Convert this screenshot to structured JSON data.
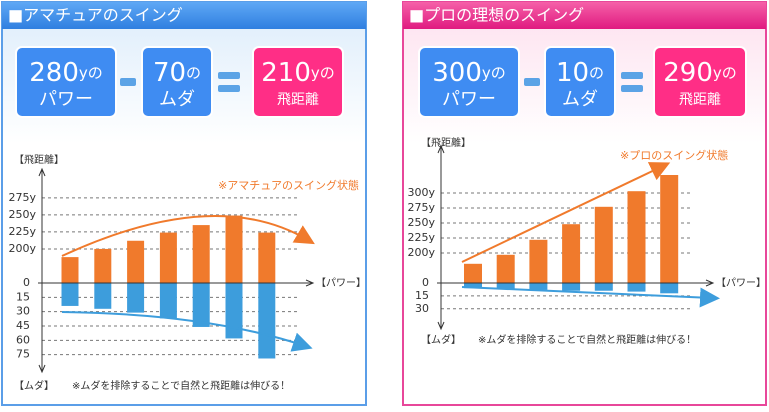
{
  "panels": [
    {
      "title": "■アマチュアのスイング",
      "equation": [
        {
          "number": "280",
          "unit": "yの",
          "label": "パワー"
        },
        {
          "number": "70",
          "unit": "の",
          "label": "ムダ"
        },
        {
          "number": "210",
          "unit": "yの",
          "label": "飛距離"
        }
      ]
    },
    {
      "title": "■プロの理想のスイング",
      "equation": [
        {
          "number": "300",
          "unit": "yの",
          "label": "パワー"
        },
        {
          "number": "10",
          "unit": "の",
          "label": "ムダ"
        },
        {
          "number": "290",
          "unit": "yの",
          "label": "飛距離"
        }
      ]
    }
  ],
  "chart_data": [
    {
      "type": "bar",
      "ylabel": "【飛距離】",
      "y2label": "【ムダ】",
      "xlabel": "【パワー】",
      "annotation": "※アマチュアのスイング状態",
      "note": "※ムダを排除することで自然と飛距離は伸びる！",
      "series": [
        {
          "color": "#f07a2c",
          "values": [
            188,
            200,
            212,
            224,
            235,
            249,
            224
          ]
        },
        {
          "color": "#3d9ddc",
          "values": [
            24,
            27,
            31,
            37,
            46,
            58,
            79
          ],
          "axis": "y2"
        }
      ],
      "ylim": [
        150,
        310
      ],
      "yticks": [
        {
          "value": 200,
          "label": "200y"
        },
        {
          "value": 225,
          "label": "225y"
        },
        {
          "value": 250,
          "label": "250y"
        },
        {
          "value": 275,
          "label": "275y"
        }
      ],
      "y2lim": [
        0,
        90
      ],
      "y2ticks": [
        0,
        15,
        30,
        45,
        60,
        75
      ],
      "y2_inverted": true,
      "grid": true
    },
    {
      "type": "bar",
      "ylabel": "【飛距離】",
      "y2label": "【ムダ】",
      "xlabel": "【パワー】",
      "annotation": "※プロのスイング状態",
      "note": "※ムダを排除することで自然と飛距離は伸びる！",
      "series": [
        {
          "color": "#f07a2c",
          "values": [
            182,
            197,
            222,
            248,
            277,
            303,
            330
          ]
        },
        {
          "color": "#3d9ddc",
          "values": [
            6,
            7,
            8,
            9,
            9,
            10,
            12
          ],
          "axis": "y2"
        }
      ],
      "ylim": [
        150,
        370
      ],
      "yticks": [
        {
          "value": 200,
          "label": "200y"
        },
        {
          "value": 225,
          "label": "225y"
        },
        {
          "value": 250,
          "label": "250y"
        },
        {
          "value": 275,
          "label": "275y"
        },
        {
          "value": 300,
          "label": "300y"
        }
      ],
      "y2lim": [
        0,
        50
      ],
      "y2ticks": [
        0,
        15,
        30
      ],
      "y2_inverted": true,
      "grid": true
    }
  ]
}
